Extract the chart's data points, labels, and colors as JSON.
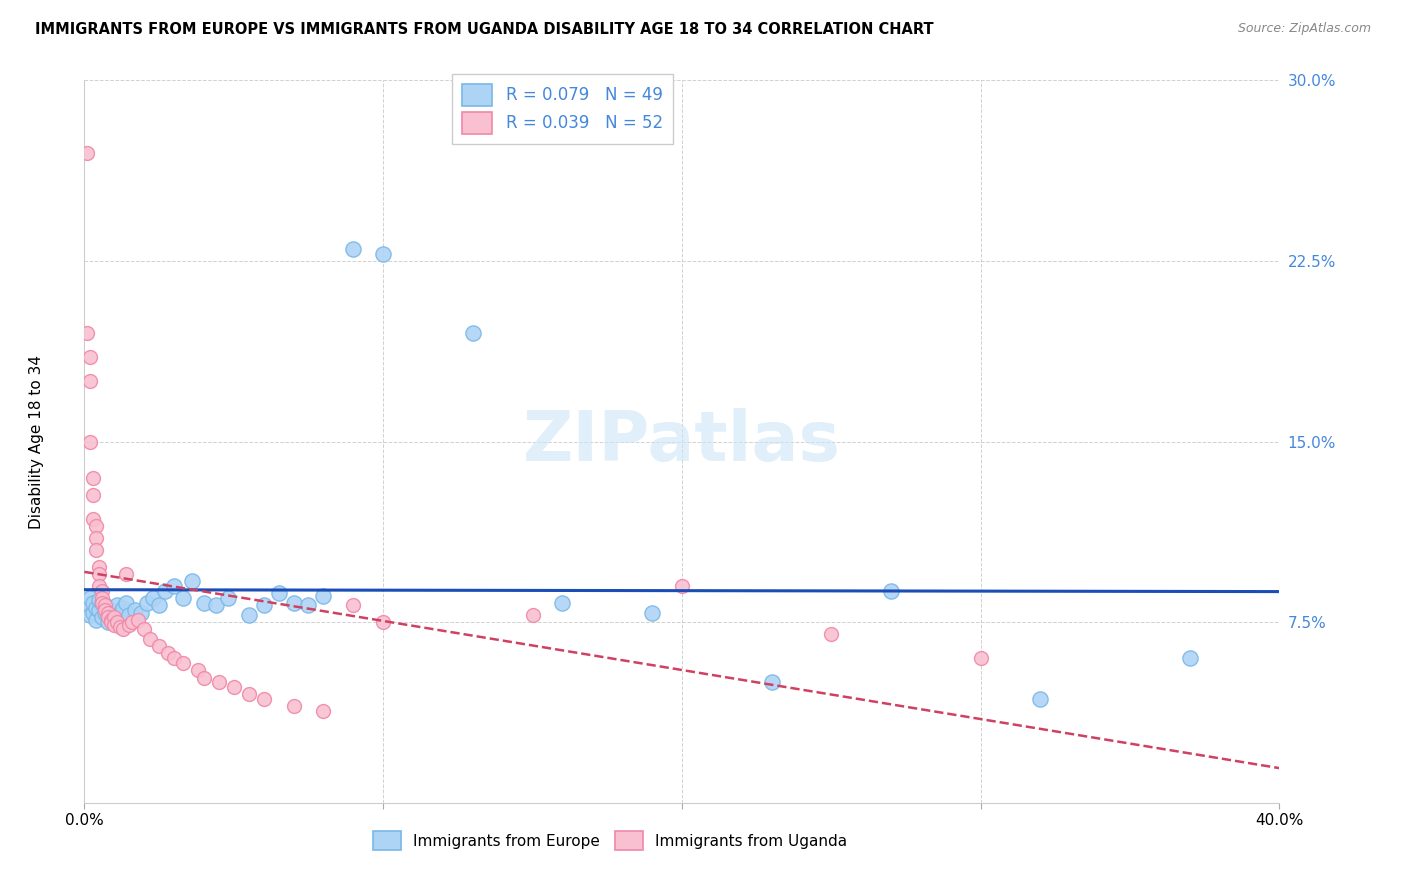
{
  "title": "IMMIGRANTS FROM EUROPE VS IMMIGRANTS FROM UGANDA DISABILITY AGE 18 TO 34 CORRELATION CHART",
  "source": "Source: ZipAtlas.com",
  "ylabel": "Disability Age 18 to 34",
  "xlim": [
    0.0,
    0.4
  ],
  "ylim": [
    0.0,
    0.3
  ],
  "ytick_positions": [
    0.075,
    0.15,
    0.225,
    0.3
  ],
  "yticklabels": [
    "7.5%",
    "15.0%",
    "22.5%",
    "30.0%"
  ],
  "xtick_positions": [
    0.0,
    0.1,
    0.2,
    0.3,
    0.4
  ],
  "xticklabels": [
    "0.0%",
    "",
    "",
    "",
    "40.0%"
  ],
  "blue_edge": "#7ab8e8",
  "blue_face": "#aed4f5",
  "pink_edge": "#f088a8",
  "pink_face": "#f8c0d0",
  "trendline_blue": "#1a4db5",
  "trendline_pink": "#d04060",
  "tick_label_color": "#4488dd",
  "R_blue": 0.079,
  "N_blue": 49,
  "R_pink": 0.039,
  "N_pink": 52,
  "watermark": "ZIPatlas",
  "europe_x": [
    0.001,
    0.002,
    0.002,
    0.003,
    0.003,
    0.004,
    0.004,
    0.005,
    0.005,
    0.006,
    0.006,
    0.007,
    0.007,
    0.008,
    0.008,
    0.009,
    0.01,
    0.011,
    0.012,
    0.013,
    0.014,
    0.015,
    0.017,
    0.019,
    0.021,
    0.023,
    0.025,
    0.027,
    0.03,
    0.033,
    0.036,
    0.04,
    0.044,
    0.048,
    0.055,
    0.06,
    0.065,
    0.07,
    0.075,
    0.08,
    0.09,
    0.1,
    0.13,
    0.16,
    0.19,
    0.23,
    0.27,
    0.32,
    0.37
  ],
  "europe_y": [
    0.082,
    0.078,
    0.085,
    0.079,
    0.083,
    0.076,
    0.081,
    0.08,
    0.084,
    0.077,
    0.083,
    0.079,
    0.082,
    0.078,
    0.075,
    0.08,
    0.077,
    0.082,
    0.079,
    0.081,
    0.083,
    0.078,
    0.08,
    0.079,
    0.083,
    0.085,
    0.082,
    0.088,
    0.09,
    0.085,
    0.092,
    0.083,
    0.082,
    0.085,
    0.078,
    0.082,
    0.087,
    0.083,
    0.082,
    0.086,
    0.23,
    0.228,
    0.195,
    0.083,
    0.079,
    0.05,
    0.088,
    0.043,
    0.06
  ],
  "uganda_x": [
    0.001,
    0.001,
    0.002,
    0.002,
    0.002,
    0.003,
    0.003,
    0.003,
    0.004,
    0.004,
    0.004,
    0.005,
    0.005,
    0.005,
    0.006,
    0.006,
    0.006,
    0.007,
    0.007,
    0.008,
    0.008,
    0.009,
    0.009,
    0.01,
    0.01,
    0.011,
    0.012,
    0.013,
    0.014,
    0.015,
    0.016,
    0.018,
    0.02,
    0.022,
    0.025,
    0.028,
    0.03,
    0.033,
    0.038,
    0.04,
    0.045,
    0.05,
    0.055,
    0.06,
    0.07,
    0.08,
    0.09,
    0.1,
    0.15,
    0.2,
    0.25,
    0.3
  ],
  "uganda_y": [
    0.27,
    0.195,
    0.185,
    0.175,
    0.15,
    0.135,
    0.128,
    0.118,
    0.115,
    0.11,
    0.105,
    0.098,
    0.095,
    0.09,
    0.088,
    0.085,
    0.083,
    0.082,
    0.08,
    0.079,
    0.077,
    0.076,
    0.075,
    0.077,
    0.074,
    0.075,
    0.073,
    0.072,
    0.095,
    0.074,
    0.075,
    0.076,
    0.072,
    0.068,
    0.065,
    0.062,
    0.06,
    0.058,
    0.055,
    0.052,
    0.05,
    0.048,
    0.045,
    0.043,
    0.04,
    0.038,
    0.082,
    0.075,
    0.078,
    0.09,
    0.07,
    0.06
  ]
}
